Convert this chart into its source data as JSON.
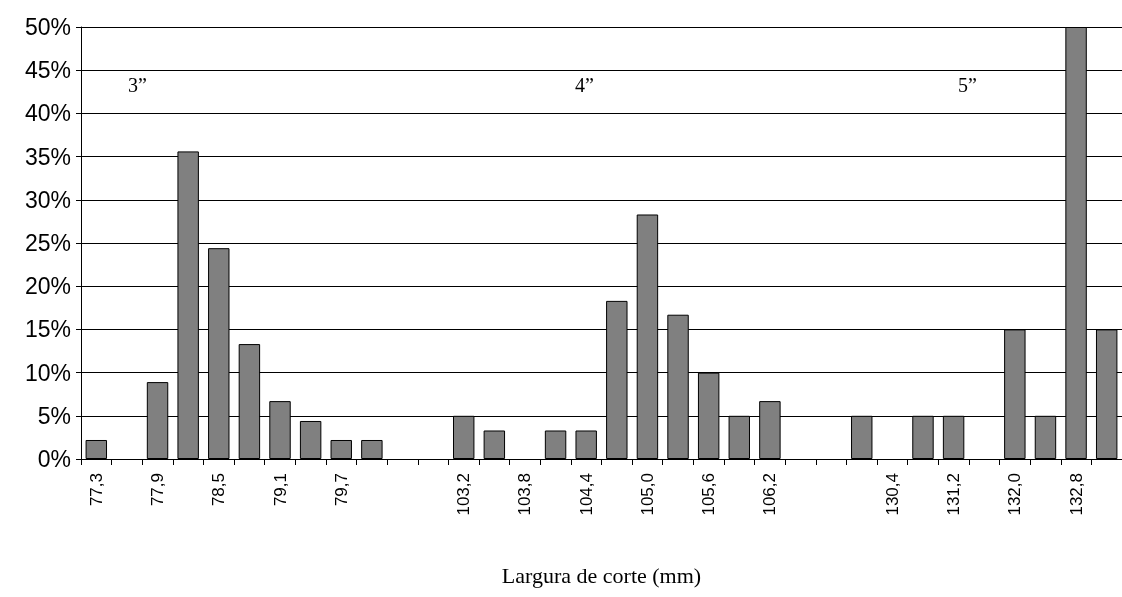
{
  "chart_data": {
    "type": "bar",
    "xlabel": "Largura de corte (mm)",
    "categories": [
      "77,3",
      null,
      "77,9",
      null,
      "78,5",
      null,
      "79,1",
      null,
      "79,7",
      null,
      null,
      null,
      "103,2",
      null,
      "103,8",
      null,
      "104,4",
      null,
      "105,0",
      null,
      "105,6",
      null,
      "106,2",
      null,
      null,
      null,
      "130,4",
      null,
      "131,2",
      null,
      "132,0",
      null,
      "132,8",
      null
    ],
    "values": [
      2.2,
      null,
      8.9,
      35.6,
      24.4,
      13.3,
      6.7,
      4.4,
      2.2,
      2.2,
      null,
      null,
      5,
      3.3,
      null,
      3.3,
      3.3,
      18.3,
      28.3,
      16.7,
      10,
      5,
      6.7,
      null,
      null,
      5,
      null,
      5,
      5,
      null,
      15,
      5,
      50,
      15
    ],
    "color": "#808080",
    "ylim": [
      0,
      50
    ],
    "yticks": [
      {
        "value": 0,
        "label": "0%"
      },
      {
        "value": 5,
        "label": "5%"
      },
      {
        "value": 10,
        "label": "10%"
      },
      {
        "value": 15,
        "label": "15%"
      },
      {
        "value": 20,
        "label": "20%"
      },
      {
        "value": 25,
        "label": "25%"
      },
      {
        "value": 30,
        "label": "30%"
      },
      {
        "value": 35,
        "label": "35%"
      },
      {
        "value": 40,
        "label": "40%"
      },
      {
        "value": 45,
        "label": "45%"
      },
      {
        "value": 50,
        "label": "50%"
      }
    ],
    "annotations": [
      "3”",
      "4”",
      "5”"
    ],
    "grid": "y"
  }
}
